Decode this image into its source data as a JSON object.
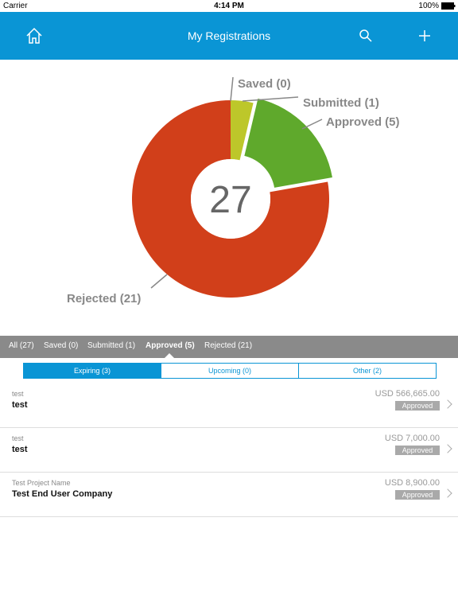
{
  "status_bar": {
    "carrier": "Carrier",
    "time": "4:14 PM",
    "battery": "100%"
  },
  "header": {
    "title": "My Registrations"
  },
  "chart_data": {
    "type": "donut",
    "categories": [
      "Saved (0)",
      "Submitted (1)",
      "Approved (5)",
      "Rejected (21)"
    ],
    "values": [
      0,
      1,
      5,
      21
    ],
    "colors": [
      null,
      "#bdc72a",
      "#5fa92c",
      "#d13f1a"
    ],
    "exploded": [
      false,
      false,
      true,
      false
    ],
    "center_label": 27
  },
  "filter_tabs": [
    "All (27)",
    "Saved (0)",
    "Submitted (1)",
    "Approved (5)",
    "Rejected (21)"
  ],
  "selected_tab": 3,
  "segments": [
    "Expiring (3)",
    "Upcoming (0)",
    "Other (2)"
  ],
  "selected_segment": 0,
  "rows": [
    {
      "subtitle": "test",
      "title": "test",
      "amount": "USD 566,665.00",
      "status": "Approved"
    },
    {
      "subtitle": "test",
      "title": "test",
      "amount": "USD 7,000.00",
      "status": "Approved"
    },
    {
      "subtitle": "Test Project Name",
      "title": "Test End User Company",
      "amount": "USD 8,900.00",
      "status": "Approved"
    }
  ]
}
